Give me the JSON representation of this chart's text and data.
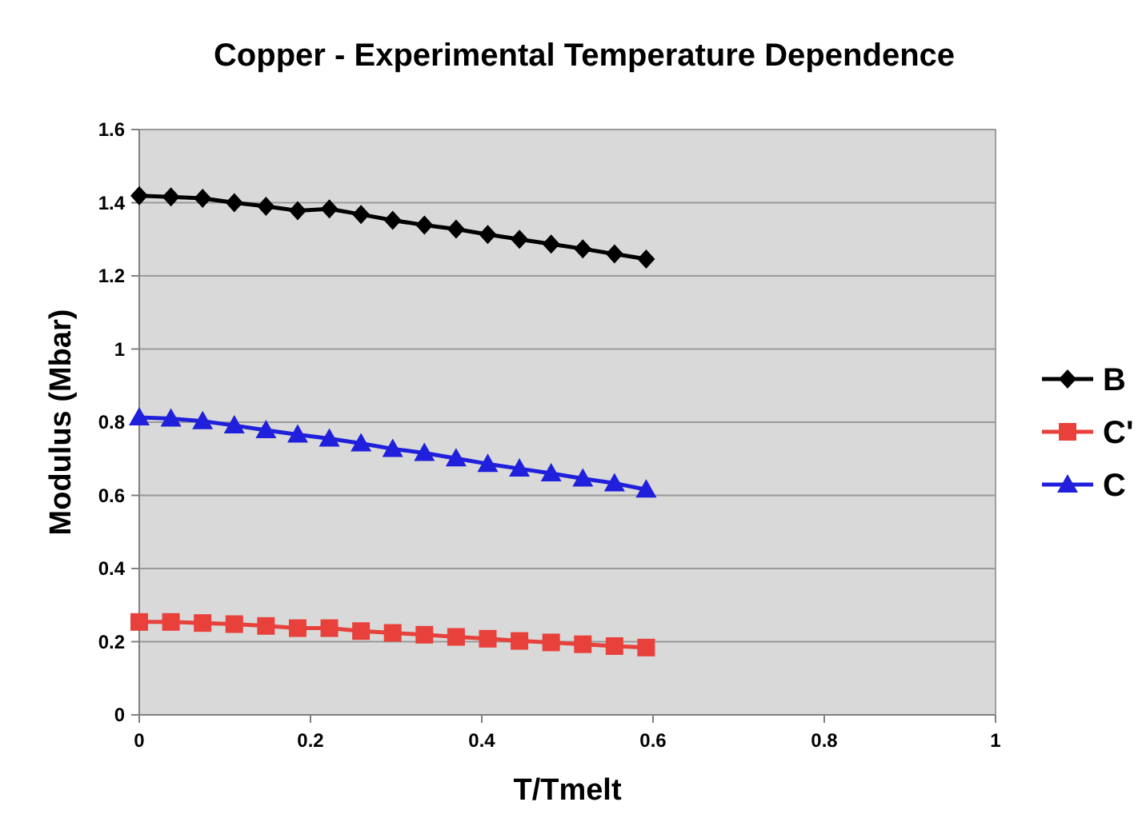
{
  "chart_data": {
    "type": "line",
    "title": "Copper - Experimental Temperature Dependence",
    "xlabel": "T/Tmelt",
    "ylabel": "Modulus (Mbar)",
    "x": [
      0,
      0.037,
      0.074,
      0.111,
      0.148,
      0.185,
      0.222,
      0.259,
      0.296,
      0.333,
      0.37,
      0.407,
      0.444,
      0.481,
      0.518,
      0.555,
      0.592
    ],
    "series": [
      {
        "name": "B",
        "color": "#000000",
        "marker": "diamond",
        "values": [
          1.419,
          1.416,
          1.412,
          1.4,
          1.39,
          1.378,
          1.383,
          1.368,
          1.352,
          1.339,
          1.328,
          1.313,
          1.3,
          1.287,
          1.274,
          1.26,
          1.246
        ]
      },
      {
        "name": "C'",
        "color": "#e8413c",
        "marker": "square",
        "values": [
          0.254,
          0.254,
          0.251,
          0.248,
          0.243,
          0.237,
          0.237,
          0.229,
          0.224,
          0.219,
          0.213,
          0.208,
          0.202,
          0.198,
          0.193,
          0.188,
          0.184
        ]
      },
      {
        "name": "C",
        "color": "#1f1fdc",
        "marker": "triangle",
        "values": [
          0.813,
          0.81,
          0.803,
          0.791,
          0.778,
          0.766,
          0.755,
          0.742,
          0.727,
          0.716,
          0.701,
          0.686,
          0.673,
          0.66,
          0.646,
          0.633,
          0.616
        ]
      }
    ],
    "xlim": [
      0,
      1
    ],
    "xticks": [
      0,
      0.2,
      0.4,
      0.6,
      0.8,
      1
    ],
    "ylim": [
      0,
      1.6
    ],
    "yticks": [
      0,
      0.2,
      0.4,
      0.6,
      0.8,
      1,
      1.2,
      1.4,
      1.6
    ],
    "grid": "y",
    "legend": "right",
    "line_style": "solid"
  }
}
